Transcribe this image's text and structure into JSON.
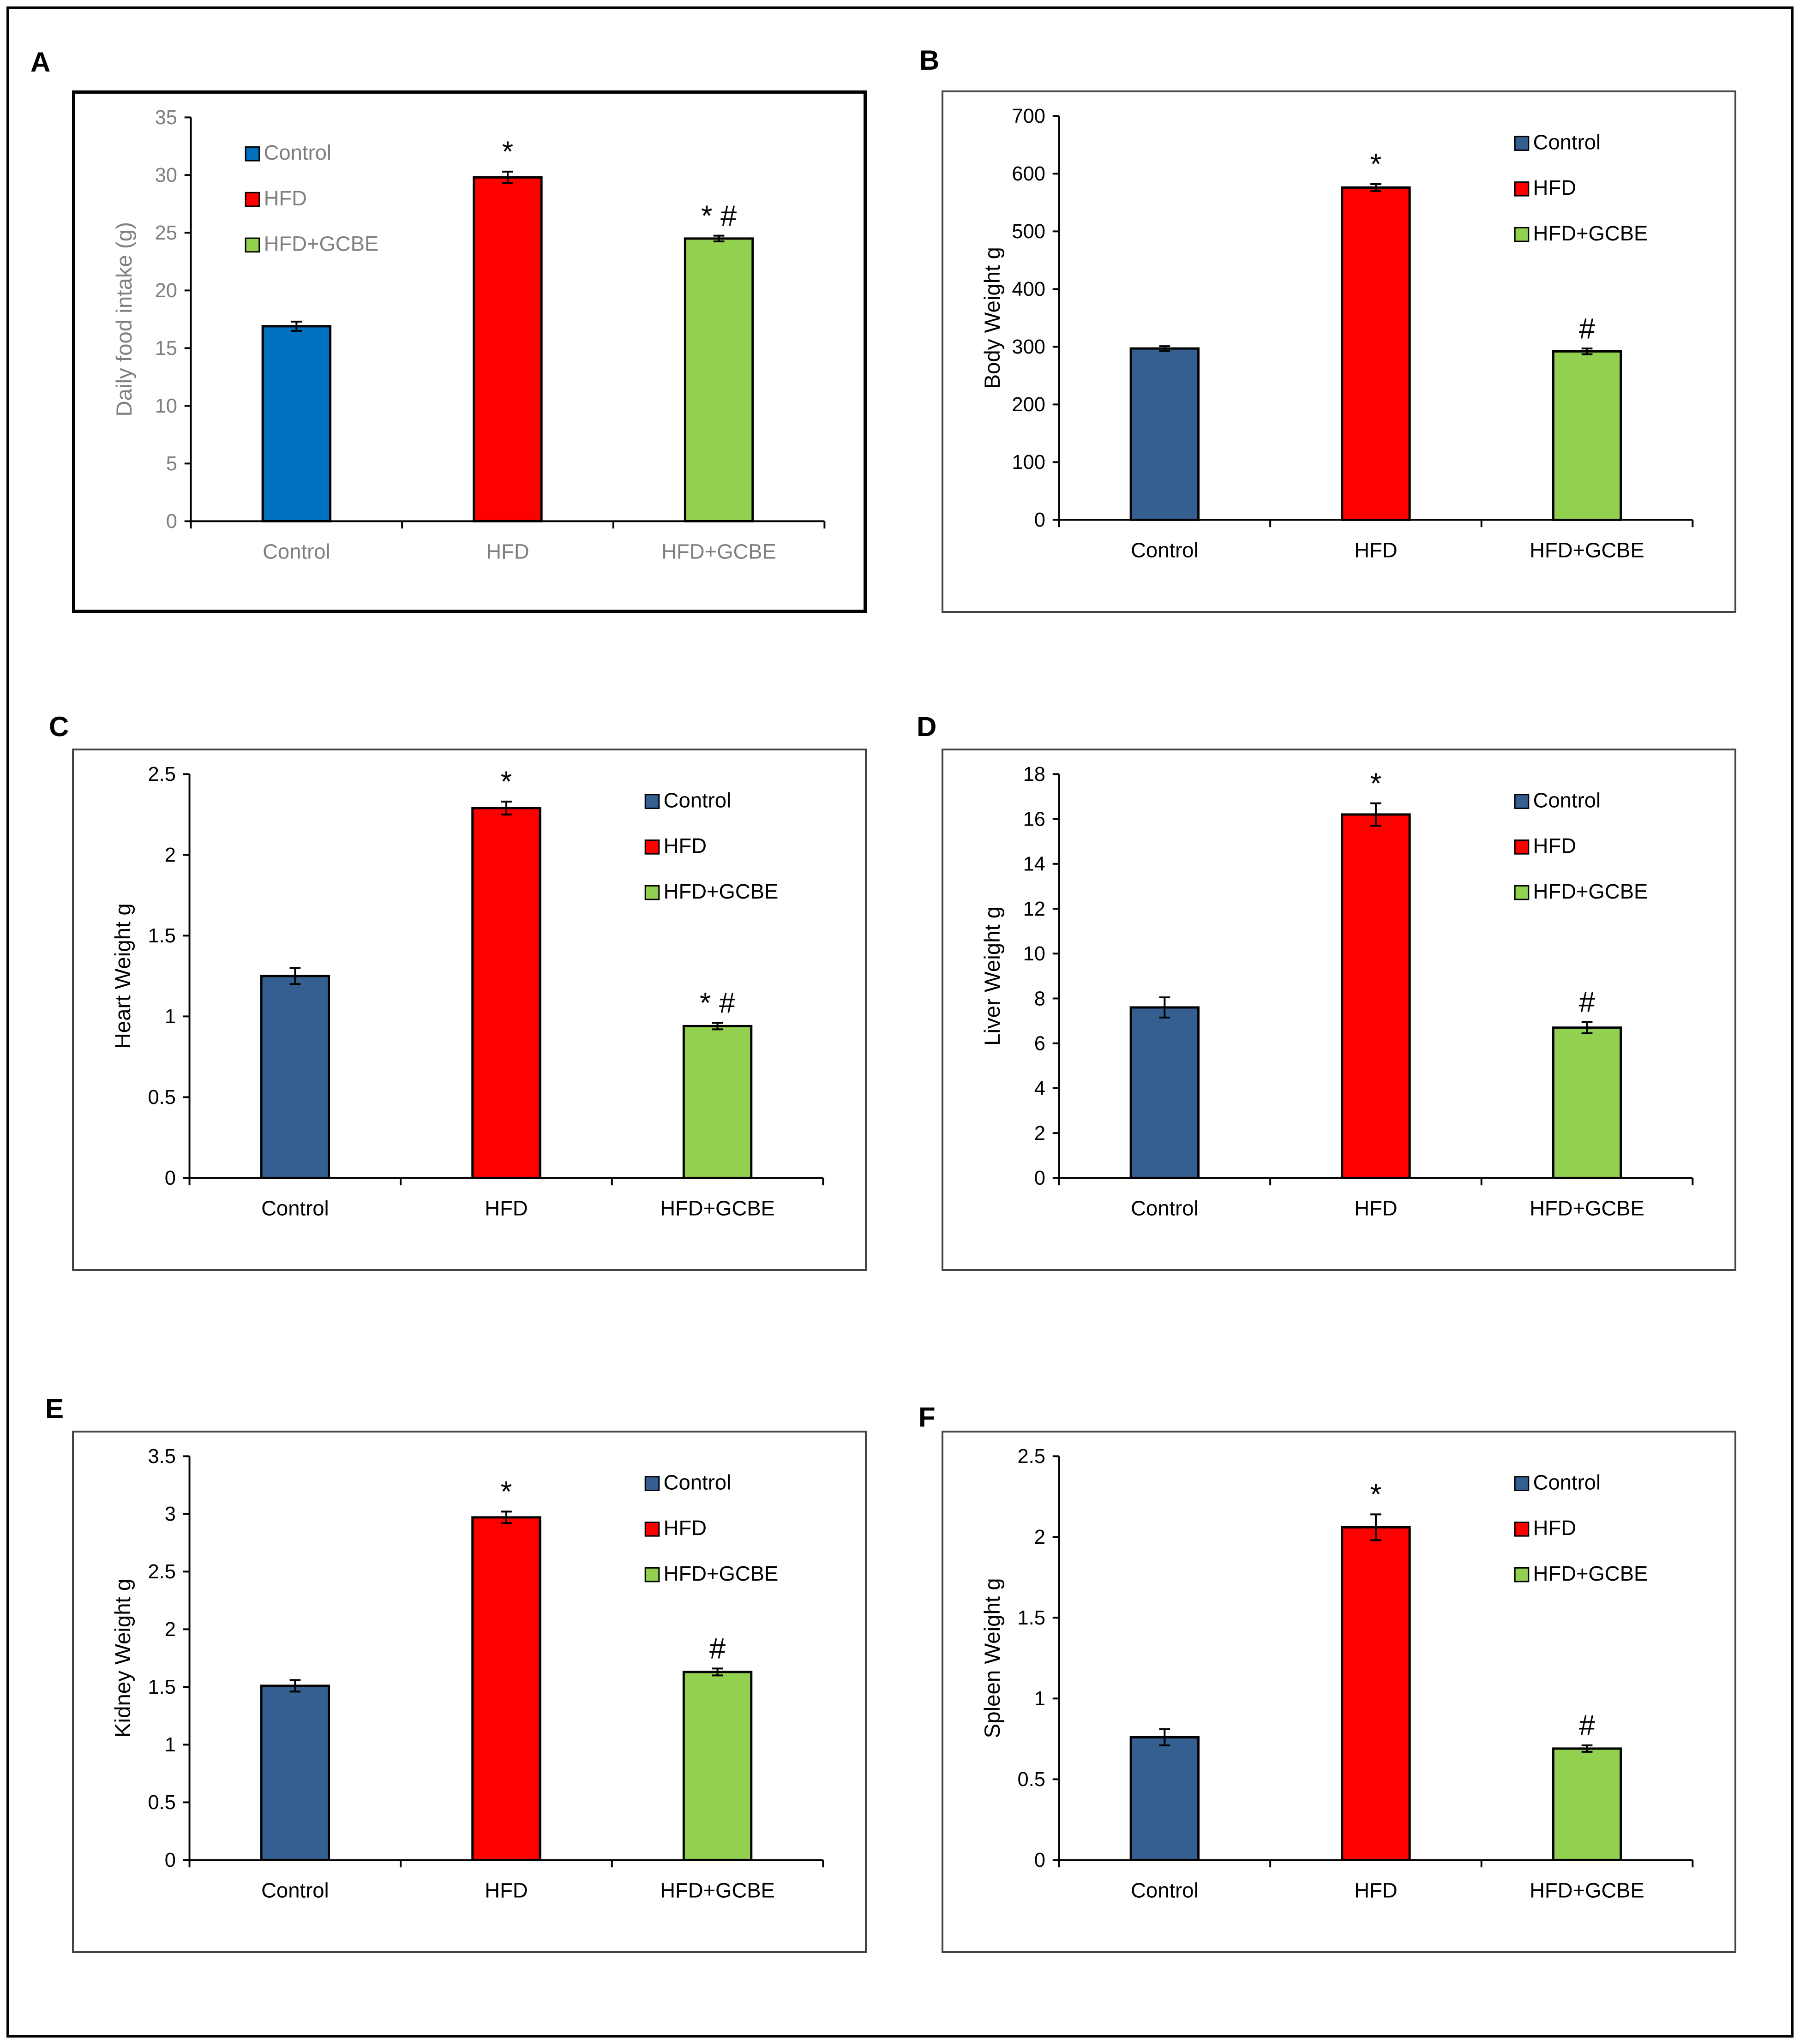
{
  "panel_letters": [
    "A",
    "B",
    "C",
    "D",
    "E",
    "F"
  ],
  "chart_data": [
    {
      "type": "bar",
      "panel": "A",
      "title": "",
      "xlabel": "",
      "ylabel": "Daily food intake (g)",
      "ylim": [
        0,
        35
      ],
      "yticks": [
        0,
        5,
        10,
        15,
        20,
        25,
        30,
        35
      ],
      "categories": [
        "Control",
        "HFD",
        "HFD+GCBE"
      ],
      "values": [
        16.9,
        29.8,
        24.5
      ],
      "errors": [
        0.4,
        0.5,
        0.25
      ],
      "annotations": [
        "",
        "*",
        "* #"
      ],
      "legend": [
        "Control",
        "HFD",
        "HFD+GCBE"
      ],
      "legend_position": "top-left",
      "colors": [
        "#0070C0",
        "#FF0000",
        "#92D050"
      ],
      "text_color": "#7f7f7f"
    },
    {
      "type": "bar",
      "panel": "B",
      "title": "",
      "xlabel": "",
      "ylabel": "Body Weight g",
      "ylim": [
        0,
        700
      ],
      "yticks": [
        0,
        100,
        200,
        300,
        400,
        500,
        600,
        700
      ],
      "categories": [
        "Control",
        "HFD",
        "HFD+GCBE"
      ],
      "values": [
        297,
        576,
        292
      ],
      "errors": [
        4,
        6,
        5
      ],
      "annotations": [
        "",
        "*",
        "#"
      ],
      "legend": [
        "Control",
        "HFD",
        "HFD+GCBE"
      ],
      "legend_position": "top-right",
      "colors": [
        "#365F91",
        "#FF0000",
        "#92D050"
      ],
      "text_color": "#000000"
    },
    {
      "type": "bar",
      "panel": "C",
      "title": "",
      "xlabel": "",
      "ylabel": "Heart Weight g",
      "ylim": [
        0,
        2.5
      ],
      "yticks": [
        0,
        0.5,
        1,
        1.5,
        2,
        2.5
      ],
      "categories": [
        "Control",
        "HFD",
        "HFD+GCBE"
      ],
      "values": [
        1.25,
        2.29,
        0.94
      ],
      "errors": [
        0.05,
        0.04,
        0.02
      ],
      "annotations": [
        "",
        "*",
        "*  #"
      ],
      "legend": [
        "Control",
        "HFD",
        "HFD+GCBE"
      ],
      "legend_position": "top-right",
      "colors": [
        "#365F91",
        "#FF0000",
        "#92D050"
      ],
      "text_color": "#000000"
    },
    {
      "type": "bar",
      "panel": "D",
      "title": "",
      "xlabel": "",
      "ylabel": "Liver Weight g",
      "ylim": [
        0,
        18
      ],
      "yticks": [
        0,
        2,
        4,
        6,
        8,
        10,
        12,
        14,
        16,
        18
      ],
      "categories": [
        "Control",
        "HFD",
        "HFD+GCBE"
      ],
      "values": [
        7.6,
        16.2,
        6.7
      ],
      "errors": [
        0.45,
        0.5,
        0.25
      ],
      "annotations": [
        "",
        "*",
        "#"
      ],
      "legend": [
        "Control",
        "HFD",
        "HFD+GCBE"
      ],
      "legend_position": "top-right",
      "colors": [
        "#365F91",
        "#FF0000",
        "#92D050"
      ],
      "text_color": "#000000"
    },
    {
      "type": "bar",
      "panel": "E",
      "title": "",
      "xlabel": "",
      "ylabel": "Kidney Weight g",
      "ylim": [
        0,
        3.5
      ],
      "yticks": [
        0,
        0.5,
        1,
        1.5,
        2,
        2.5,
        3,
        3.5
      ],
      "categories": [
        "Control",
        "HFD",
        "HFD+GCBE"
      ],
      "values": [
        1.51,
        2.97,
        1.63
      ],
      "errors": [
        0.05,
        0.05,
        0.03
      ],
      "annotations": [
        "",
        "*",
        "#"
      ],
      "legend": [
        "Control",
        "HFD",
        "HFD+GCBE"
      ],
      "legend_position": "top-right",
      "colors": [
        "#365F91",
        "#FF0000",
        "#92D050"
      ],
      "text_color": "#000000"
    },
    {
      "type": "bar",
      "panel": "F",
      "title": "",
      "xlabel": "",
      "ylabel": "Spleen Weight g",
      "ylim": [
        0,
        2.5
      ],
      "yticks": [
        0,
        0.5,
        1,
        1.5,
        2,
        2.5
      ],
      "categories": [
        "Control",
        "HFD",
        "HFD+GCBE"
      ],
      "values": [
        0.76,
        2.06,
        0.69
      ],
      "errors": [
        0.05,
        0.08,
        0.02
      ],
      "annotations": [
        "",
        "*",
        "#"
      ],
      "legend": [
        "Control",
        "HFD",
        "HFD+GCBE"
      ],
      "legend_position": "top-right",
      "colors": [
        "#365F91",
        "#FF0000",
        "#92D050"
      ],
      "text_color": "#000000"
    }
  ]
}
